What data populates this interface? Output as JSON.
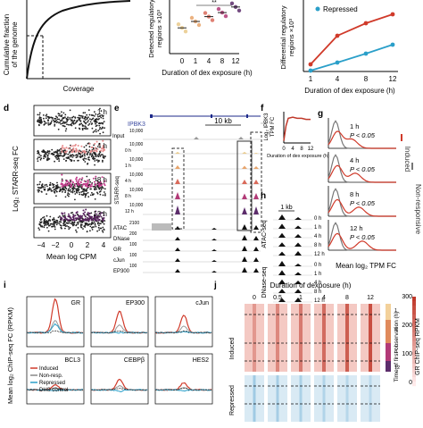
{
  "panel_letters": {
    "d": "d",
    "e": "e",
    "f": "f",
    "g": "g",
    "h": "h",
    "i": "i",
    "j": "j"
  },
  "panel_a": {
    "ylabel_line1": "Cumulative fraction",
    "ylabel_line2": "of the genome",
    "xlabel": "Coverage"
  },
  "panel_b": {
    "ylabel_line1": "Detected regulatory",
    "ylabel_line2": "regions ×10³",
    "xlabel": "Duration of dex exposure (h)",
    "xticks": [
      "0",
      "1",
      "4",
      "8",
      "12"
    ],
    "sig": "**"
  },
  "panel_c": {
    "ylabel_line1": "Differential regulatory",
    "ylabel_line2": "regions ×10³",
    "xlabel": "Duration of dex exposure (h)",
    "xticks": [
      "1",
      "4",
      "8",
      "12"
    ],
    "legend": "Repressed"
  },
  "panel_d": {
    "ylabel": "Log₂ STARR-seq FC",
    "xlabel": "Mean log CPM",
    "xticks": [
      "−4",
      "−2",
      "0",
      "2",
      "4"
    ],
    "times": [
      "1 h",
      "4 h",
      "8 h",
      "12 h"
    ],
    "colors": [
      "#333333",
      "#e78a8a",
      "#c23b8a",
      "#5a2360"
    ]
  },
  "panel_e": {
    "gene": "IPBK3",
    "scale": "10 kb",
    "input_label": "Input",
    "input_max": "10,000",
    "starr_label": "STARR-seq",
    "starr_rows": [
      {
        "t": "0 h",
        "max": "10,000"
      },
      {
        "t": "1 h",
        "max": "10,000"
      },
      {
        "t": "4 h",
        "max": "10,000"
      },
      {
        "t": "8 h",
        "max": "10,000"
      },
      {
        "t": "12 h",
        "max": "10,000"
      }
    ],
    "tracks": [
      {
        "label": "ATAC",
        "max": "2100"
      },
      {
        "label": "DNase",
        "max": "200"
      },
      {
        "label": "GR",
        "max": "100"
      },
      {
        "label": "cJun",
        "max": "100"
      },
      {
        "label": "EP300",
        "max": "100"
      }
    ]
  },
  "panel_f": {
    "ylabel_line1": "Log₂ IPBK3",
    "ylabel_line2": "TPM FC",
    "xlabel": "Duration of dex exposure (h)",
    "xticks": [
      "0",
      "4",
      "8",
      "12"
    ]
  },
  "panel_g": {
    "xlabel": "Mean log₂ TPM FC",
    "rows": [
      {
        "t": "1 h",
        "p": "P < 0.05"
      },
      {
        "t": "4 h",
        "p": "P < 0.05"
      },
      {
        "t": "8 h",
        "p": "P < 0.05"
      },
      {
        "t": "12 h",
        "p": "P < 0.05"
      }
    ],
    "legend_induced": "Induced",
    "legend_non": "Non-responsive"
  },
  "panel_h": {
    "scale": "1 kb",
    "atac_label": "ATAC-seq",
    "dnase_label": "DNase-seq",
    "times": [
      "0 h",
      "1 h",
      "4 h",
      "8 h",
      "12 h"
    ]
  },
  "panel_i": {
    "ylabel": "Mean log₂ ChIP-seq FC (RPKM)",
    "top": [
      "GR",
      "EP300",
      "cJun"
    ],
    "bottom": [
      "BCL3",
      "CEBPβ",
      "HES2"
    ],
    "legend": [
      "Induced",
      "Non-resp.",
      "Repressed",
      "DHS control"
    ]
  },
  "panel_j": {
    "title": "Duration of dexposure (h)",
    "times": [
      "0",
      "0.5",
      "1",
      "4",
      "8",
      "12"
    ],
    "row_induced": "Induced",
    "row_repressed": "Repressed",
    "colorbar_title": "GR ChIP-seq RPKM",
    "colorbar_ticks": [
      "300",
      "200",
      "100",
      "0"
    ],
    "firstobs_title": "Time of first observation (h)",
    "firstobs_ticks": [
      "1",
      "4",
      "8",
      "12"
    ]
  },
  "chart_data": [
    {
      "panel": "b",
      "type": "scatter",
      "x": [
        "0",
        "1",
        "4",
        "8",
        "12"
      ],
      "values": [
        3.2,
        4.0,
        4.6,
        5.1,
        5.8
      ]
    },
    {
      "panel": "c",
      "type": "line",
      "x": [
        "1",
        "4",
        "8",
        "12"
      ],
      "series": [
        {
          "name": "Induced",
          "values": [
            0.4,
            2.0,
            2.7,
            3.2
          ],
          "color": "#d03a2a"
        },
        {
          "name": "Repressed",
          "values": [
            0.05,
            0.5,
            1.0,
            1.5
          ],
          "color": "#2a9fc9"
        }
      ]
    },
    {
      "panel": "f",
      "type": "line",
      "x": [
        0,
        1,
        2,
        4,
        6,
        8,
        10,
        12
      ],
      "values": [
        0.2,
        1.6,
        2.3,
        2.4,
        2.3,
        2.3,
        2.2,
        2.2
      ]
    },
    {
      "panel": "i",
      "type": "line",
      "subplots": [
        "GR",
        "EP300",
        "cJun",
        "BCL3",
        "CEBPβ",
        "HES2"
      ]
    }
  ]
}
